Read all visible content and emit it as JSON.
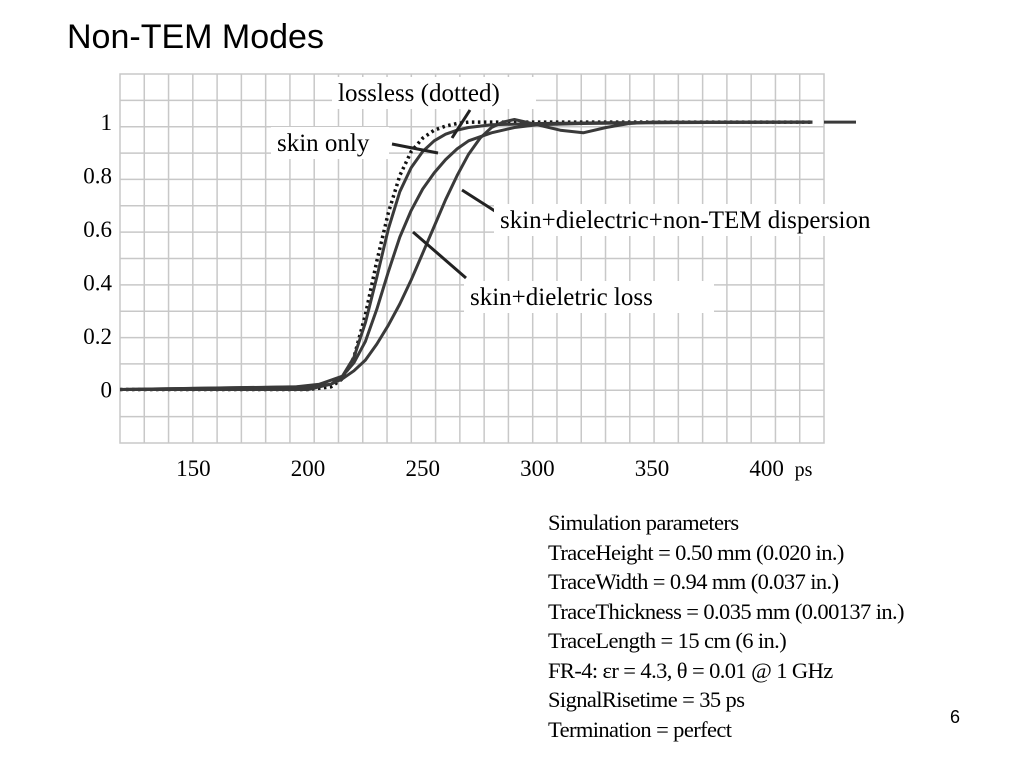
{
  "slide": {
    "title": "Non-TEM Modes",
    "page_number": "6"
  },
  "chart_data": {
    "type": "line",
    "x_tick_labels": [
      "150",
      "200",
      "250",
      "300",
      "350",
      "400"
    ],
    "x_units": "ps",
    "y_tick_labels": [
      "0",
      "0.2",
      "0.4",
      "0.6",
      "0.8",
      "1"
    ],
    "xlim": [
      118,
      425
    ],
    "ylim": [
      -0.2,
      1.18
    ],
    "grid": true,
    "series": [
      {
        "name": "lossless (dotted)",
        "style": "dotted",
        "x": [
          118,
          200,
          210,
          215,
          220,
          225,
          230,
          235,
          240,
          245,
          250,
          255,
          260,
          265,
          270,
          280,
          290,
          300,
          420
        ],
        "y": [
          0,
          0,
          0.01,
          0.04,
          0.12,
          0.28,
          0.48,
          0.66,
          0.8,
          0.89,
          0.94,
          0.97,
          0.985,
          0.995,
          1.0,
          1.0,
          1.0,
          1.0,
          1.0
        ]
      },
      {
        "name": "skin only",
        "style": "solid",
        "x": [
          118,
          200,
          210,
          215,
          220,
          225,
          230,
          235,
          240,
          245,
          250,
          255,
          260,
          265,
          270,
          280,
          300,
          330,
          420
        ],
        "y": [
          0,
          0.01,
          0.02,
          0.05,
          0.12,
          0.25,
          0.42,
          0.6,
          0.74,
          0.83,
          0.89,
          0.93,
          0.955,
          0.97,
          0.98,
          0.99,
          0.995,
          0.998,
          1.0
        ]
      },
      {
        "name": "skin+dieletric loss",
        "style": "solid",
        "x": [
          118,
          195,
          205,
          215,
          220,
          225,
          230,
          235,
          240,
          245,
          250,
          255,
          260,
          265,
          270,
          280,
          290,
          300,
          320,
          350,
          420
        ],
        "y": [
          0,
          0.01,
          0.02,
          0.05,
          0.1,
          0.18,
          0.3,
          0.44,
          0.57,
          0.67,
          0.75,
          0.81,
          0.86,
          0.9,
          0.93,
          0.96,
          0.98,
          0.99,
          0.995,
          0.998,
          1.0
        ]
      },
      {
        "name": "skin+dielectric+non-TEM dispersion",
        "style": "solid",
        "x": [
          118,
          200,
          205,
          210,
          215,
          220,
          225,
          230,
          235,
          240,
          245,
          250,
          255,
          260,
          265,
          270,
          275,
          280,
          285,
          290,
          295,
          300,
          310,
          320,
          330,
          340,
          350,
          420
        ],
        "y": [
          0,
          0.0,
          0.01,
          0.02,
          0.04,
          0.07,
          0.11,
          0.17,
          0.24,
          0.32,
          0.41,
          0.51,
          0.61,
          0.71,
          0.8,
          0.88,
          0.94,
          0.98,
          1.0,
          1.01,
          1.0,
          0.99,
          0.97,
          0.96,
          0.98,
          0.995,
          1.0,
          1.0
        ]
      }
    ],
    "annotations": [
      {
        "text": "lossless (dotted)",
        "series": 0
      },
      {
        "text": "skin only",
        "series": 1
      },
      {
        "text": "skin+dielectric+non-TEM dispersion",
        "series": 3
      },
      {
        "text": "skin+dieletric loss",
        "series": 2
      }
    ]
  },
  "parameters": {
    "title": "Simulation parameters",
    "lines": [
      "TraceHeight = 0.50 mm (0.020 in.)",
      "TraceWidth = 0.94 mm (0.037 in.)",
      "TraceThickness = 0.035 mm (0.00137 in.)",
      "TraceLength = 15 cm (6 in.)",
      "FR-4: εr = 4.3, θ = 0.01 @ 1 GHz",
      "SignalRisetime = 35 ps",
      "Termination = perfect"
    ]
  }
}
